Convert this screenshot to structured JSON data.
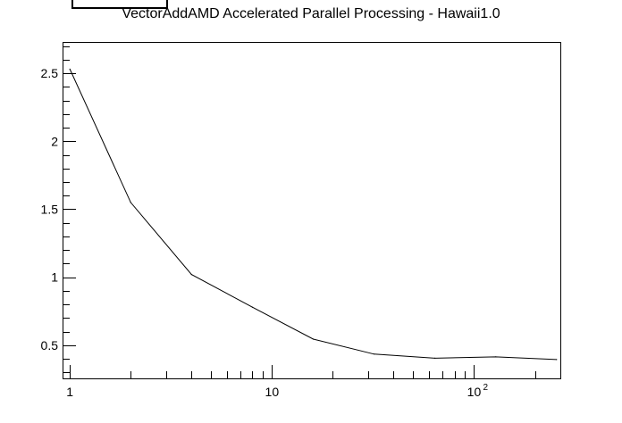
{
  "chart_data": {
    "type": "line",
    "title": "VectorAddAMD Accelerated Parallel Processing - Hawaii1.0",
    "xlabel": "",
    "ylabel": "",
    "x_scale": "log",
    "xlim": [
      0.92,
      270
    ],
    "ylim": [
      0.25,
      2.73
    ],
    "x_ticks": [
      {
        "value": 1,
        "label": "1"
      },
      {
        "value": 10,
        "label": "10"
      },
      {
        "value": 100,
        "label": "10",
        "exponent": "2"
      }
    ],
    "y_ticks": [
      {
        "value": 0.5,
        "label": "0.5"
      },
      {
        "value": 1,
        "label": "1"
      },
      {
        "value": 1.5,
        "label": "1.5"
      },
      {
        "value": 2,
        "label": "2"
      },
      {
        "value": 2.5,
        "label": "2.5"
      }
    ],
    "grid": false,
    "legend": "none",
    "line_color": "#000000",
    "series": [
      {
        "x": [
          1,
          2,
          4,
          8,
          16,
          32,
          64,
          128,
          256
        ],
        "y": [
          2.53,
          1.55,
          1.02,
          0.78,
          0.545,
          0.435,
          0.405,
          0.415,
          0.395
        ]
      }
    ]
  }
}
